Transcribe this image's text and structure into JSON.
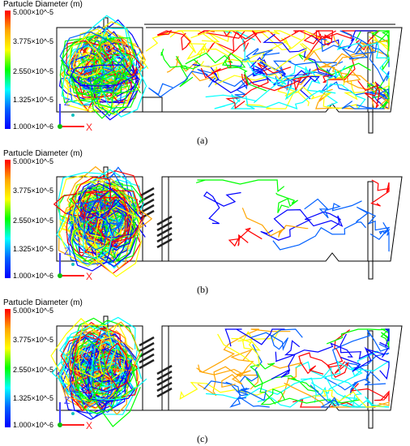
{
  "legend": {
    "title": "Partucle Diameter (m)",
    "ticks": [
      "5.000×10^-5",
      "3.775×10^-5",
      "2.550×10^-5",
      "1.325×10^-5",
      "1.000×10^-6"
    ],
    "colors": [
      "#ff0000",
      "#ffa500",
      "#ffff00",
      "#00ff00",
      "#00ffff",
      "#0060ff",
      "#0000ff"
    ]
  },
  "axes": {
    "z": "Z",
    "x": "X"
  },
  "panels": [
    {
      "label": "(a)",
      "variant": "a"
    },
    {
      "label": "(b)",
      "variant": "b"
    },
    {
      "label": "(c)",
      "variant": "c"
    }
  ]
}
